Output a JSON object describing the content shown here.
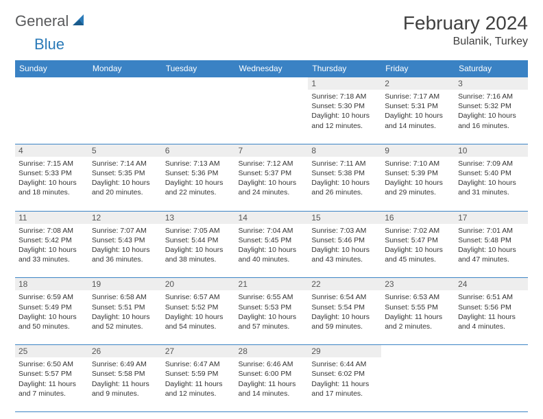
{
  "brand": {
    "part1": "General",
    "part2": "Blue"
  },
  "title": {
    "month": "February 2024",
    "location": "Bulanik, Turkey"
  },
  "colors": {
    "headerBg": "#3a82c4",
    "headerText": "#ffffff",
    "dayBarBg": "#eeeeee",
    "bodyText": "#333333",
    "borderColor": "#3a82c4",
    "logoGray": "#58595b",
    "logoBlue": "#2a7ab8",
    "pageBg": "#ffffff"
  },
  "dayNames": [
    "Sunday",
    "Monday",
    "Tuesday",
    "Wednesday",
    "Thursday",
    "Friday",
    "Saturday"
  ],
  "weeks": [
    [
      {
        "empty": true
      },
      {
        "empty": true
      },
      {
        "empty": true
      },
      {
        "empty": true
      },
      {
        "n": "1",
        "sr": "Sunrise: 7:18 AM",
        "ss": "Sunset: 5:30 PM",
        "d1": "Daylight: 10 hours",
        "d2": "and 12 minutes."
      },
      {
        "n": "2",
        "sr": "Sunrise: 7:17 AM",
        "ss": "Sunset: 5:31 PM",
        "d1": "Daylight: 10 hours",
        "d2": "and 14 minutes."
      },
      {
        "n": "3",
        "sr": "Sunrise: 7:16 AM",
        "ss": "Sunset: 5:32 PM",
        "d1": "Daylight: 10 hours",
        "d2": "and 16 minutes."
      }
    ],
    [
      {
        "n": "4",
        "sr": "Sunrise: 7:15 AM",
        "ss": "Sunset: 5:33 PM",
        "d1": "Daylight: 10 hours",
        "d2": "and 18 minutes."
      },
      {
        "n": "5",
        "sr": "Sunrise: 7:14 AM",
        "ss": "Sunset: 5:35 PM",
        "d1": "Daylight: 10 hours",
        "d2": "and 20 minutes."
      },
      {
        "n": "6",
        "sr": "Sunrise: 7:13 AM",
        "ss": "Sunset: 5:36 PM",
        "d1": "Daylight: 10 hours",
        "d2": "and 22 minutes."
      },
      {
        "n": "7",
        "sr": "Sunrise: 7:12 AM",
        "ss": "Sunset: 5:37 PM",
        "d1": "Daylight: 10 hours",
        "d2": "and 24 minutes."
      },
      {
        "n": "8",
        "sr": "Sunrise: 7:11 AM",
        "ss": "Sunset: 5:38 PM",
        "d1": "Daylight: 10 hours",
        "d2": "and 26 minutes."
      },
      {
        "n": "9",
        "sr": "Sunrise: 7:10 AM",
        "ss": "Sunset: 5:39 PM",
        "d1": "Daylight: 10 hours",
        "d2": "and 29 minutes."
      },
      {
        "n": "10",
        "sr": "Sunrise: 7:09 AM",
        "ss": "Sunset: 5:40 PM",
        "d1": "Daylight: 10 hours",
        "d2": "and 31 minutes."
      }
    ],
    [
      {
        "n": "11",
        "sr": "Sunrise: 7:08 AM",
        "ss": "Sunset: 5:42 PM",
        "d1": "Daylight: 10 hours",
        "d2": "and 33 minutes."
      },
      {
        "n": "12",
        "sr": "Sunrise: 7:07 AM",
        "ss": "Sunset: 5:43 PM",
        "d1": "Daylight: 10 hours",
        "d2": "and 36 minutes."
      },
      {
        "n": "13",
        "sr": "Sunrise: 7:05 AM",
        "ss": "Sunset: 5:44 PM",
        "d1": "Daylight: 10 hours",
        "d2": "and 38 minutes."
      },
      {
        "n": "14",
        "sr": "Sunrise: 7:04 AM",
        "ss": "Sunset: 5:45 PM",
        "d1": "Daylight: 10 hours",
        "d2": "and 40 minutes."
      },
      {
        "n": "15",
        "sr": "Sunrise: 7:03 AM",
        "ss": "Sunset: 5:46 PM",
        "d1": "Daylight: 10 hours",
        "d2": "and 43 minutes."
      },
      {
        "n": "16",
        "sr": "Sunrise: 7:02 AM",
        "ss": "Sunset: 5:47 PM",
        "d1": "Daylight: 10 hours",
        "d2": "and 45 minutes."
      },
      {
        "n": "17",
        "sr": "Sunrise: 7:01 AM",
        "ss": "Sunset: 5:48 PM",
        "d1": "Daylight: 10 hours",
        "d2": "and 47 minutes."
      }
    ],
    [
      {
        "n": "18",
        "sr": "Sunrise: 6:59 AM",
        "ss": "Sunset: 5:49 PM",
        "d1": "Daylight: 10 hours",
        "d2": "and 50 minutes."
      },
      {
        "n": "19",
        "sr": "Sunrise: 6:58 AM",
        "ss": "Sunset: 5:51 PM",
        "d1": "Daylight: 10 hours",
        "d2": "and 52 minutes."
      },
      {
        "n": "20",
        "sr": "Sunrise: 6:57 AM",
        "ss": "Sunset: 5:52 PM",
        "d1": "Daylight: 10 hours",
        "d2": "and 54 minutes."
      },
      {
        "n": "21",
        "sr": "Sunrise: 6:55 AM",
        "ss": "Sunset: 5:53 PM",
        "d1": "Daylight: 10 hours",
        "d2": "and 57 minutes."
      },
      {
        "n": "22",
        "sr": "Sunrise: 6:54 AM",
        "ss": "Sunset: 5:54 PM",
        "d1": "Daylight: 10 hours",
        "d2": "and 59 minutes."
      },
      {
        "n": "23",
        "sr": "Sunrise: 6:53 AM",
        "ss": "Sunset: 5:55 PM",
        "d1": "Daylight: 11 hours",
        "d2": "and 2 minutes."
      },
      {
        "n": "24",
        "sr": "Sunrise: 6:51 AM",
        "ss": "Sunset: 5:56 PM",
        "d1": "Daylight: 11 hours",
        "d2": "and 4 minutes."
      }
    ],
    [
      {
        "n": "25",
        "sr": "Sunrise: 6:50 AM",
        "ss": "Sunset: 5:57 PM",
        "d1": "Daylight: 11 hours",
        "d2": "and 7 minutes."
      },
      {
        "n": "26",
        "sr": "Sunrise: 6:49 AM",
        "ss": "Sunset: 5:58 PM",
        "d1": "Daylight: 11 hours",
        "d2": "and 9 minutes."
      },
      {
        "n": "27",
        "sr": "Sunrise: 6:47 AM",
        "ss": "Sunset: 5:59 PM",
        "d1": "Daylight: 11 hours",
        "d2": "and 12 minutes."
      },
      {
        "n": "28",
        "sr": "Sunrise: 6:46 AM",
        "ss": "Sunset: 6:00 PM",
        "d1": "Daylight: 11 hours",
        "d2": "and 14 minutes."
      },
      {
        "n": "29",
        "sr": "Sunrise: 6:44 AM",
        "ss": "Sunset: 6:02 PM",
        "d1": "Daylight: 11 hours",
        "d2": "and 17 minutes."
      },
      {
        "empty": true
      },
      {
        "empty": true
      }
    ]
  ]
}
